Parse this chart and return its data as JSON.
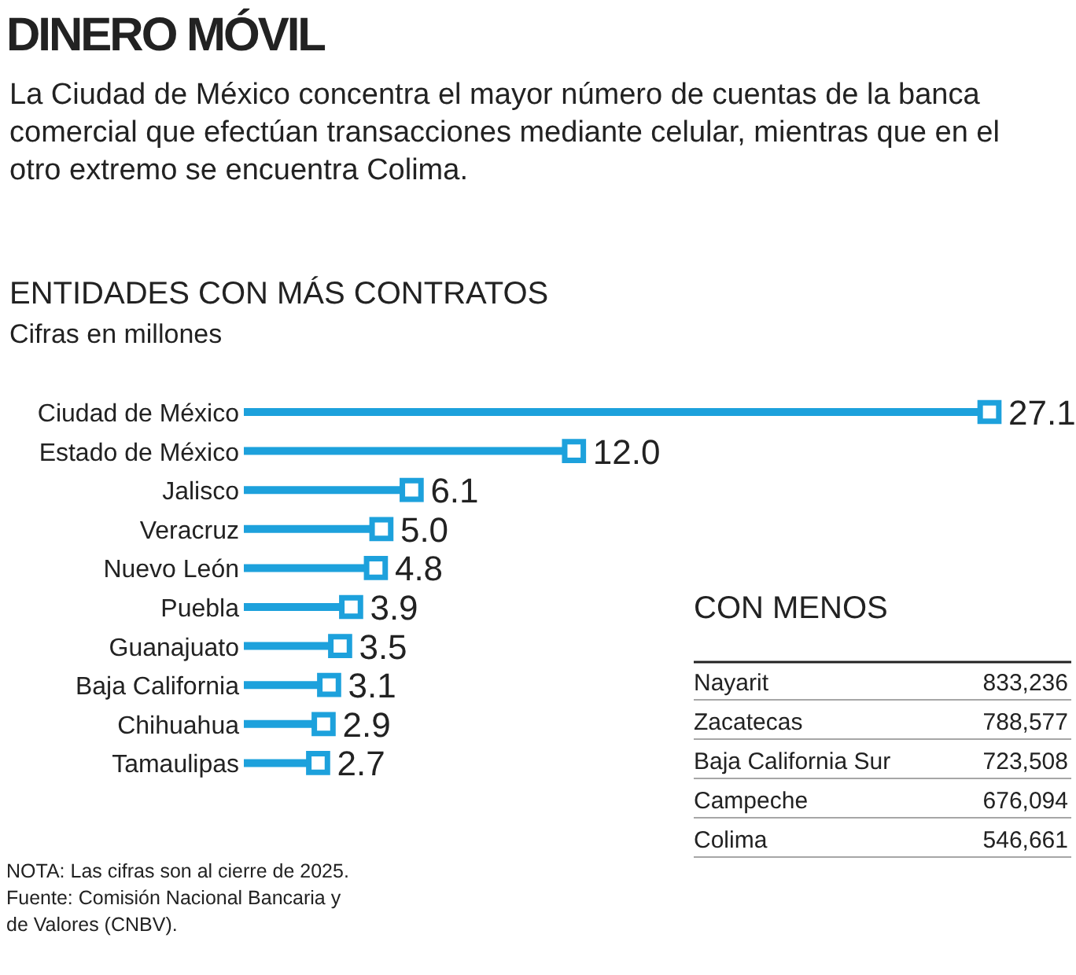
{
  "chart_data": [
    {
      "type": "lollipop",
      "orientation": "horizontal",
      "title": "ENTIDADES CON MÁS CONTRATOS",
      "subtitle": "Cifras en millones",
      "categories": [
        "Ciudad de México",
        "Estado de México",
        "Jalisco",
        "Veracruz",
        "Nuevo León",
        "Puebla",
        "Guanajuato",
        "Baja California",
        "Chihuahua",
        "Tamaulipas"
      ],
      "values": [
        27.1,
        12.0,
        6.1,
        5.0,
        4.8,
        3.9,
        3.5,
        3.1,
        2.9,
        2.7
      ],
      "value_labels": [
        "27.1",
        "12.0",
        "6.1",
        "5.0",
        "4.8",
        "3.9",
        "3.5",
        "3.1",
        "2.9",
        "2.7"
      ],
      "color": "#1da1dc",
      "marker": "square",
      "annotations": [
        "DINERO MÓVIL",
        "La Ciudad de México concentra el mayor número de cuentas de la banca comercial que efectúan transacciones mediante celular, mientras que en el otro extremo se encuentra Colima.",
        "NOTA: Las cifras son al cierre de 2025.",
        "Fuente: Comisión Nacional Bancaria y de Valores (CNBV)."
      ]
    },
    {
      "type": "other",
      "title": "CON MENOS",
      "categories": [
        "Nayarit",
        "Zacatecas",
        "Baja California Sur",
        "Campeche",
        "Colima"
      ],
      "values": [
        833236,
        788577,
        723508,
        676094,
        546661
      ],
      "value_labels": [
        "833,236",
        "788,577",
        "723,508",
        "676,094",
        "546,661"
      ]
    }
  ]
}
